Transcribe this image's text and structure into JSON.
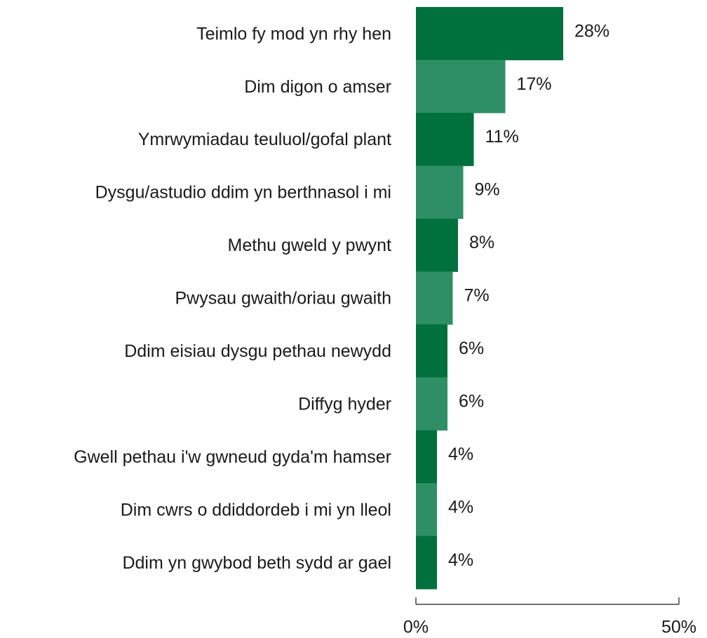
{
  "chart_data": {
    "type": "hbar",
    "categories": [
      "Teimlo fy mod yn rhy hen",
      "Dim digon o amser",
      "Ymrwymiadau teuluol/gofal plant",
      "Dysgu/astudio ddim yn berthnasol i mi",
      "Methu gweld y pwynt",
      "Pwysau gwaith/oriau gwaith",
      "Ddim eisiau dysgu pethau newydd",
      "Diffyg hyder",
      "Gwell pethau i'w gwneud gyda'm hamser",
      "Dim cwrs o ddiddordeb i mi yn lleol",
      "Ddim yn gwybod beth sydd ar gael"
    ],
    "values": [
      28,
      17,
      11,
      9,
      8,
      7,
      6,
      6,
      4,
      4,
      4
    ],
    "value_labels": [
      "28%",
      "17%",
      "11%",
      "9%",
      "8%",
      "7%",
      "6%",
      "6%",
      "4%",
      "4%",
      "4%"
    ],
    "colors": [
      "#00703c",
      "#2e8f64",
      "#00703c",
      "#2e8f64",
      "#00703c",
      "#2e8f64",
      "#00703c",
      "#2e8f64",
      "#00703c",
      "#2e8f64",
      "#00703c"
    ],
    "xlim": [
      0,
      50
    ],
    "xticks": [
      {
        "value": 0,
        "label": "0%"
      },
      {
        "value": 50,
        "label": "50%"
      }
    ]
  }
}
